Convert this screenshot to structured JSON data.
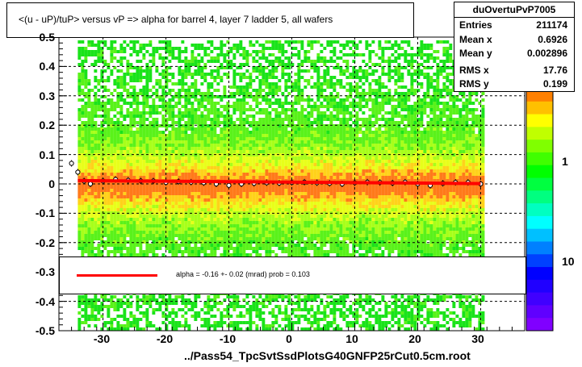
{
  "title": "<(u - uP)/tuP> versus   vP => alpha for barrel 4, layer 7 ladder 5, all wafers",
  "stats": {
    "name": "duOvertuPvP7005",
    "rows": [
      {
        "label": "Entries",
        "value": "211174"
      },
      {
        "label": "Mean x",
        "value": "0.6926"
      },
      {
        "label": "Mean y",
        "value": "0.002896"
      },
      {
        "label": "RMS x",
        "value": "17.76"
      },
      {
        "label": "RMS y",
        "value": "0.199"
      }
    ]
  },
  "fit": {
    "text": "alpha =   -0.16 +-  0.02 (mrad) prob = 0.103",
    "color": "#ff0000"
  },
  "footer": "../Pass54_TpcSvtSsdPlotsG40GNFP25rCut0.5cm.root",
  "axes": {
    "x_ticks": [
      "-30",
      "-20",
      "-10",
      "0",
      "10",
      "20",
      "30"
    ],
    "y_ticks": [
      "-0.5",
      "-0.4",
      "-0.3",
      "-0.2",
      "-0.1",
      "0",
      "0.1",
      "0.2",
      "0.3",
      "0.4",
      "0.5"
    ],
    "z_ticks": [
      "1",
      "10"
    ]
  },
  "chart_data": {
    "type": "heatmap",
    "title": "<(u - uP)/tuP> versus   vP => alpha for barrel 4, layer 7 ladder 5, all wafers",
    "xlim": [
      -37,
      37
    ],
    "ylim": [
      -0.5,
      0.5
    ],
    "x_ticks": [
      -30,
      -20,
      -10,
      0,
      10,
      20,
      30
    ],
    "y_ticks": [
      -0.5,
      -0.4,
      -0.3,
      -0.2,
      -0.1,
      0,
      0.1,
      0.2,
      0.3,
      0.4,
      0.5
    ],
    "z_scale": "log",
    "grid": true,
    "profile": {
      "x": [
        -35,
        -34,
        -33,
        -32,
        -30,
        -28,
        -26,
        -24,
        -22,
        -20,
        -18,
        -16,
        -14,
        -12,
        -10,
        -8,
        -6,
        -4,
        -2,
        0,
        2,
        4,
        6,
        8,
        10,
        12,
        14,
        16,
        18,
        20,
        22,
        24,
        26,
        28,
        30
      ],
      "y": [
        0.07,
        0.04,
        0.01,
        0.0,
        0.01,
        0.015,
        0.012,
        0.01,
        0.01,
        0.005,
        0.008,
        0.006,
        0.004,
        0.0,
        -0.005,
        0.0,
        0.002,
        0.004,
        0.003,
        0.005,
        0.006,
        0.004,
        0.002,
        0.0,
        0.004,
        0.006,
        0.005,
        0.003,
        0.006,
        0.0,
        -0.005,
        0.002,
        0.005,
        0.005,
        0.0
      ]
    },
    "fit": {
      "slope_mrad": -0.16,
      "error_mrad": 0.02,
      "prob": 0.103
    }
  }
}
